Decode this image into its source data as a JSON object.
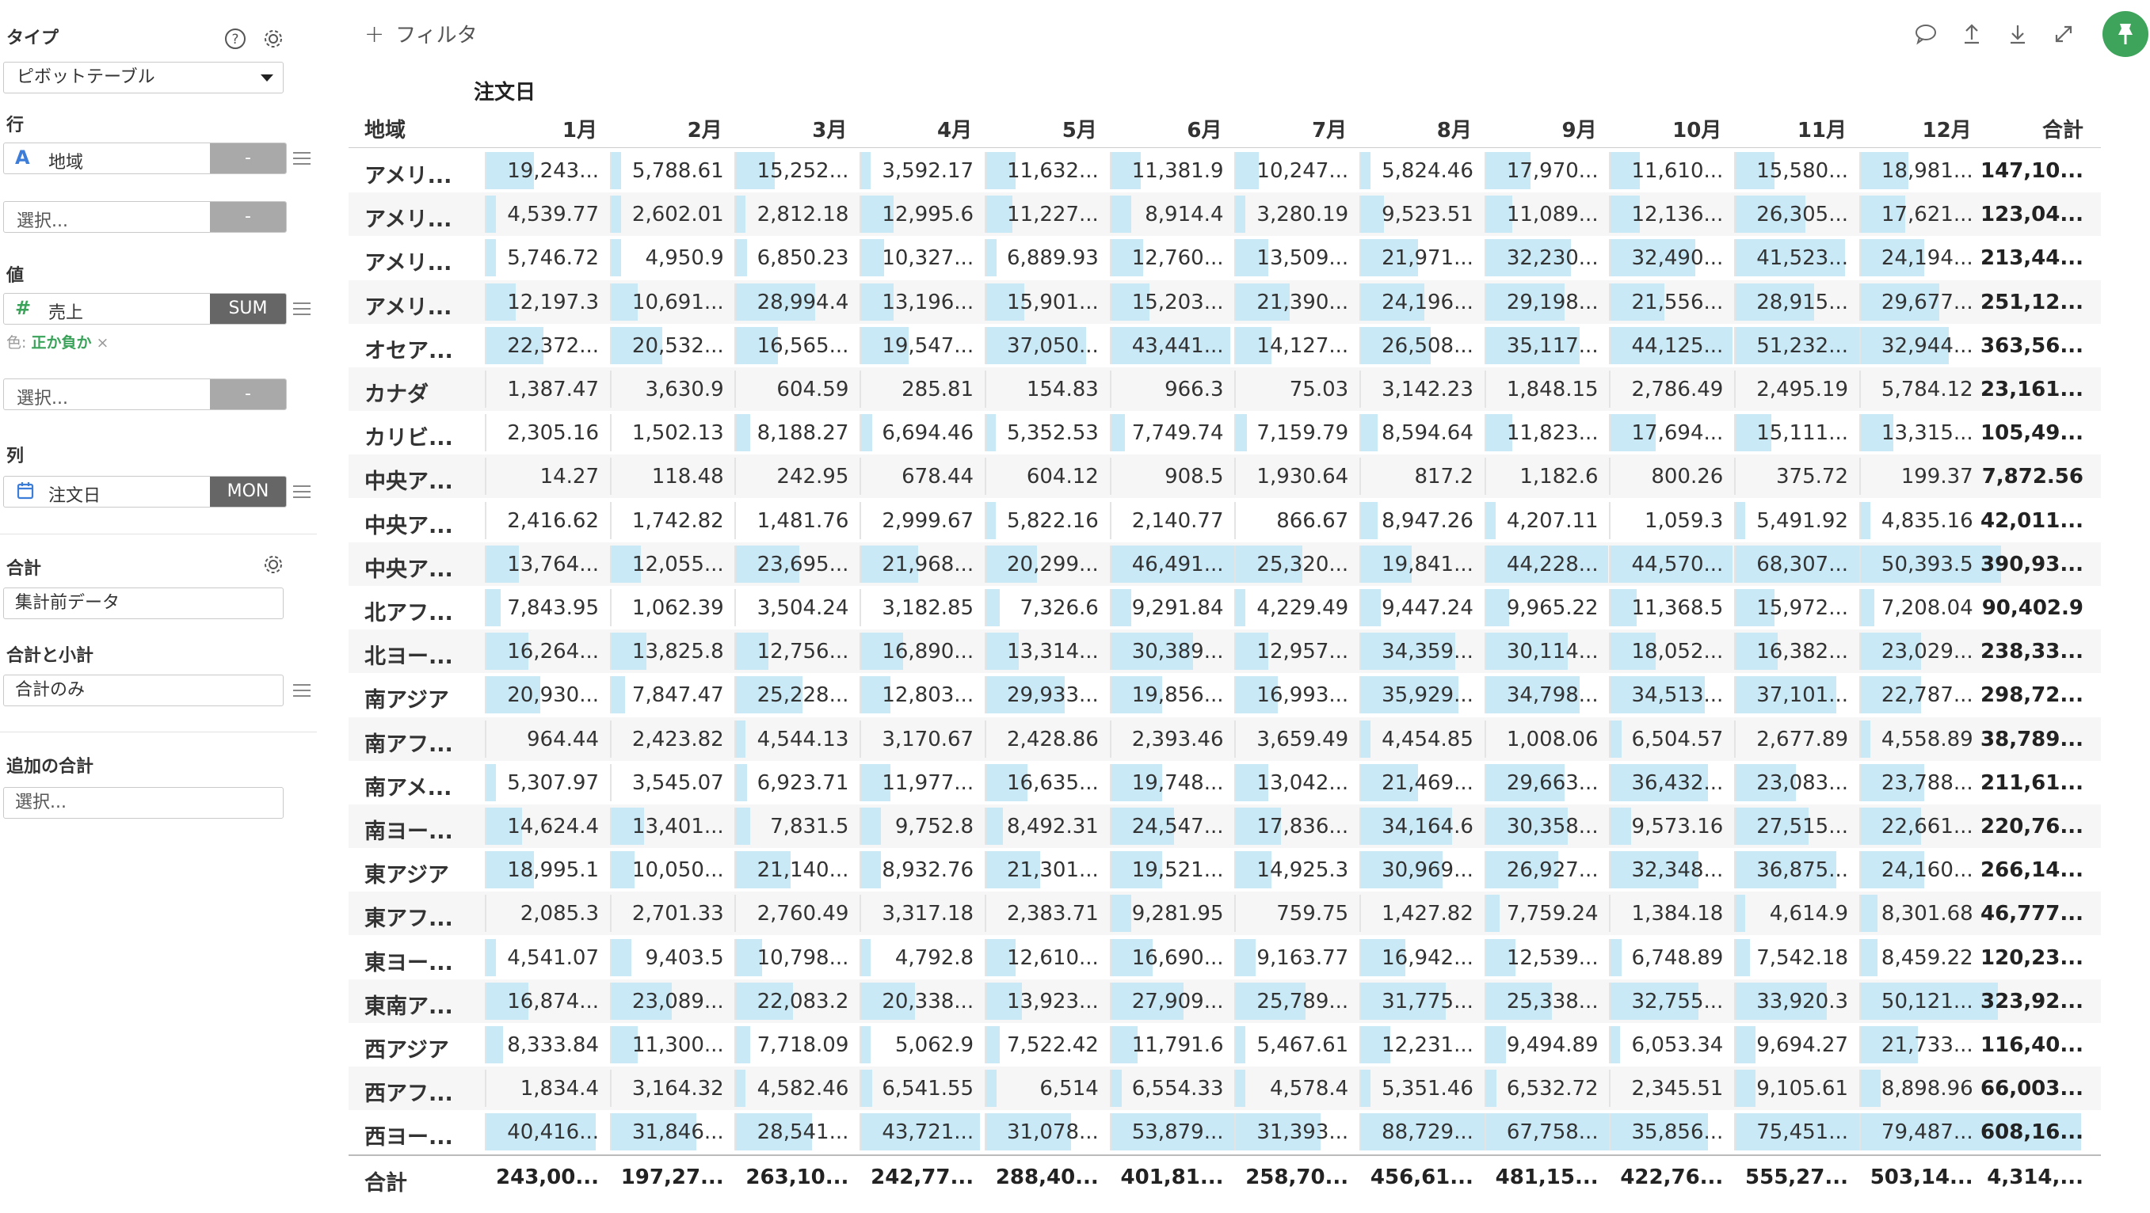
{
  "sidebar": {
    "type_label": "タイプ",
    "chart_type": "ピボットテーブル",
    "rows_label": "行",
    "row_field": {
      "type_icon": "A",
      "name": "地域",
      "agg": "-"
    },
    "row_select": {
      "placeholder": "選択...",
      "agg": "-"
    },
    "values_label": "値",
    "value_field": {
      "type_icon": "#",
      "name": "売上",
      "agg": "SUM"
    },
    "color_prefix": "色:",
    "color_value": "正か負か",
    "color_remove": "×",
    "value_select": {
      "placeholder": "選択...",
      "agg": "-"
    },
    "columns_label": "列",
    "col_field": {
      "name": "注文日",
      "agg": "MON"
    },
    "total_label": "合計",
    "total_value": "集計前データ",
    "subtotal_label": "合計と小計",
    "subtotal_value": "合計のみ",
    "extra_total_label": "追加の合計",
    "extra_total_placeholder": "選択..."
  },
  "toolbar": {
    "filter_plus": "+",
    "filter_label": "フィルタ",
    "icons": [
      "comment-icon",
      "upload-icon",
      "download-icon",
      "expand-icon",
      "pin-icon"
    ]
  },
  "table": {
    "column_group": "注文日",
    "row_header": "地域",
    "months": [
      "1月",
      "2月",
      "3月",
      "4月",
      "5月",
      "6月",
      "7月",
      "8月",
      "9月",
      "10月",
      "11月",
      "12月"
    ],
    "total_header": "合計",
    "rows": [
      {
        "name": "アメリ...",
        "cells": [
          "19,243...",
          "5,788.61",
          "15,252...",
          "3,592.17",
          "11,632...",
          "11,381.9",
          "10,247...",
          "5,824.46",
          "17,970...",
          "11,610...",
          "15,580...",
          "18,981..."
        ],
        "total": "147,10...",
        "bars": [
          0.16,
          0.03,
          0.13,
          0.01,
          0.1,
          0.1,
          0.08,
          0.03,
          0.15,
          0.1,
          0.13,
          0.16
        ]
      },
      {
        "name": "アメリ...",
        "cells": [
          "4,539.77",
          "2,602.01",
          "2,812.18",
          "12,995.6",
          "11,227...",
          "8,914.4",
          "3,280.19",
          "9,523.51",
          "11,089...",
          "12,136...",
          "26,305...",
          "17,621..."
        ],
        "total": "123,04...",
        "bars": [
          0.02,
          0.01,
          0.01,
          0.11,
          0.09,
          0.07,
          0.01,
          0.08,
          0.09,
          0.1,
          0.23,
          0.15
        ]
      },
      {
        "name": "アメリ...",
        "cells": [
          "5,746.72",
          "4,950.9",
          "6,850.23",
          "10,327...",
          "6,889.93",
          "12,760...",
          "13,509...",
          "21,971...",
          "32,230...",
          "32,490...",
          "41,523...",
          "24,194..."
        ],
        "total": "213,44...",
        "bars": [
          0.03,
          0.02,
          0.04,
          0.08,
          0.04,
          0.11,
          0.11,
          0.19,
          0.28,
          0.28,
          0.36,
          0.21
        ]
      },
      {
        "name": "アメリ...",
        "cells": [
          "12,197.3",
          "10,691...",
          "28,994.4",
          "13,196...",
          "15,901...",
          "15,203...",
          "21,390...",
          "24,196...",
          "29,198...",
          "21,556...",
          "28,915...",
          "29,677..."
        ],
        "total": "251,12...",
        "bars": [
          0.1,
          0.09,
          0.26,
          0.11,
          0.13,
          0.13,
          0.18,
          0.21,
          0.26,
          0.18,
          0.26,
          0.26
        ]
      },
      {
        "name": "オセア...",
        "cells": [
          "22,372...",
          "20,532...",
          "16,565...",
          "19,547...",
          "37,050...",
          "43,441...",
          "14,127...",
          "26,508...",
          "35,117...",
          "44,125...",
          "51,232...",
          "32,944..."
        ],
        "total": "363,56...",
        "bars": [
          0.19,
          0.17,
          0.14,
          0.16,
          0.33,
          0.39,
          0.12,
          0.23,
          0.31,
          0.4,
          0.46,
          0.29
        ]
      },
      {
        "name": "カナダ",
        "cells": [
          "1,387.47",
          "3,630.9",
          "604.59",
          "285.81",
          "154.83",
          "966.3",
          "75.03",
          "3,142.23",
          "1,848.15",
          "2,786.49",
          "2,495.19",
          "5,784.12"
        ],
        "total": "23,161...",
        "bars": [
          0,
          0,
          0,
          0,
          0,
          0,
          0,
          0,
          0,
          0,
          0,
          0
        ]
      },
      {
        "name": "カリビ...",
        "cells": [
          "2,305.16",
          "1,502.13",
          "8,188.27",
          "6,694.46",
          "5,352.53",
          "7,749.74",
          "7,159.79",
          "8,594.64",
          "11,823...",
          "17,694...",
          "15,111...",
          "13,315..."
        ],
        "total": "105,49...",
        "bars": [
          0,
          0,
          0.05,
          0.04,
          0.03,
          0.05,
          0.04,
          0.06,
          0.09,
          0.15,
          0.12,
          0.11
        ]
      },
      {
        "name": "中央ア...",
        "cells": [
          "14.27",
          "118.48",
          "242.95",
          "678.44",
          "604.12",
          "908.5",
          "1,930.64",
          "817.2",
          "1,182.6",
          "800.26",
          "375.72",
          "199.37"
        ],
        "total": "7,872.56",
        "bars": [
          0,
          0,
          0,
          0,
          0,
          0,
          0,
          0,
          0,
          0,
          0,
          0
        ]
      },
      {
        "name": "中央ア...",
        "cells": [
          "2,416.62",
          "1,742.82",
          "1,481.76",
          "2,999.67",
          "5,822.16",
          "2,140.77",
          "866.67",
          "8,947.26",
          "4,207.11",
          "1,059.3",
          "5,491.92",
          "4,835.16"
        ],
        "total": "42,011...",
        "bars": [
          0,
          0,
          0,
          0,
          0.03,
          0,
          0,
          0.06,
          0.01,
          0,
          0.03,
          0.02
        ]
      },
      {
        "name": "中央ア...",
        "cells": [
          "13,764...",
          "12,055...",
          "23,695...",
          "21,968...",
          "20,299...",
          "46,491...",
          "25,320...",
          "19,841...",
          "44,228...",
          "44,570...",
          "68,307...",
          "50,393.5"
        ],
        "total": "390,93...",
        "bars": [
          0.11,
          0.1,
          0.21,
          0.19,
          0.17,
          0.42,
          0.22,
          0.17,
          0.4,
          0.4,
          0.62,
          0.46
        ]
      },
      {
        "name": "北アフ...",
        "cells": [
          "7,843.95",
          "1,062.39",
          "3,504.24",
          "3,182.85",
          "7,326.6",
          "9,291.84",
          "4,229.49",
          "9,447.24",
          "9,965.22",
          "11,368.5",
          "15,972...",
          "7,208.04"
        ],
        "total": "90,402.9",
        "bars": [
          0.05,
          0,
          0,
          0,
          0.05,
          0.07,
          0.01,
          0.07,
          0.08,
          0.09,
          0.13,
          0.05
        ]
      },
      {
        "name": "北ヨー...",
        "cells": [
          "16,264...",
          "13,825.8",
          "12,756...",
          "16,890...",
          "13,314...",
          "30,389...",
          "12,957...",
          "34,359...",
          "30,114...",
          "18,052...",
          "16,382...",
          "23,029..."
        ],
        "total": "238,33...",
        "bars": [
          0.14,
          0.12,
          0.11,
          0.14,
          0.11,
          0.27,
          0.11,
          0.31,
          0.27,
          0.15,
          0.14,
          0.2
        ]
      },
      {
        "name": "南アジア",
        "cells": [
          "20,930...",
          "7,847.47",
          "25,228...",
          "12,803...",
          "29,933...",
          "19,856...",
          "16,993...",
          "35,929...",
          "34,798...",
          "34,513...",
          "37,101...",
          "22,787..."
        ],
        "total": "298,72...",
        "bars": [
          0.18,
          0.05,
          0.22,
          0.1,
          0.26,
          0.17,
          0.14,
          0.32,
          0.31,
          0.31,
          0.33,
          0.2
        ]
      },
      {
        "name": "南アフ...",
        "cells": [
          "964.44",
          "2,423.82",
          "4,544.13",
          "3,170.67",
          "2,428.86",
          "2,393.46",
          "3,659.49",
          "4,454.85",
          "1,008.06",
          "6,504.57",
          "2,677.89",
          "4,558.89"
        ],
        "total": "38,789...",
        "bars": [
          0,
          0,
          0.01,
          0,
          0,
          0,
          0,
          0.01,
          0,
          0.04,
          0,
          0.01
        ]
      },
      {
        "name": "南アメ...",
        "cells": [
          "5,307.97",
          "3,545.07",
          "6,923.71",
          "11,977...",
          "16,635...",
          "19,748...",
          "13,042...",
          "21,469...",
          "29,663...",
          "36,432...",
          "23,083...",
          "23,788..."
        ],
        "total": "211,61...",
        "bars": [
          0.03,
          0,
          0.04,
          0.1,
          0.14,
          0.17,
          0.11,
          0.19,
          0.26,
          0.32,
          0.2,
          0.21
        ]
      },
      {
        "name": "南ヨー...",
        "cells": [
          "14,624.4",
          "13,401...",
          "7,831.5",
          "9,752.8",
          "8,492.31",
          "24,547...",
          "17,836...",
          "34,164.6",
          "30,358...",
          "9,573.16",
          "27,515...",
          "22,661..."
        ],
        "total": "220,76...",
        "bars": [
          0.12,
          0.11,
          0.05,
          0.07,
          0.06,
          0.21,
          0.15,
          0.3,
          0.27,
          0.07,
          0.24,
          0.2
        ]
      },
      {
        "name": "東アジア",
        "cells": [
          "18,995.1",
          "10,050...",
          "21,140...",
          "8,932.76",
          "21,301...",
          "19,521...",
          "14,925.3",
          "30,969...",
          "26,927...",
          "32,348...",
          "36,875...",
          "24,160..."
        ],
        "total": "266,14...",
        "bars": [
          0.16,
          0.08,
          0.18,
          0.07,
          0.18,
          0.17,
          0.12,
          0.27,
          0.24,
          0.29,
          0.33,
          0.21
        ]
      },
      {
        "name": "東アフ...",
        "cells": [
          "2,085.3",
          "2,701.33",
          "2,760.49",
          "3,317.18",
          "2,383.71",
          "9,281.95",
          "759.75",
          "1,427.82",
          "7,759.24",
          "1,384.18",
          "4,614.9",
          "8,301.68"
        ],
        "total": "46,777...",
        "bars": [
          0,
          0,
          0,
          0,
          0,
          0.07,
          0,
          0,
          0.05,
          0,
          0.01,
          0.06
        ]
      },
      {
        "name": "東ヨー...",
        "cells": [
          "4,541.07",
          "9,403.5",
          "10,798...",
          "4,792.8",
          "12,610...",
          "16,690...",
          "9,163.77",
          "16,942...",
          "12,539...",
          "6,748.89",
          "7,542.18",
          "8,459.22"
        ],
        "total": "120,23...",
        "bars": [
          0.01,
          0.07,
          0.09,
          0.01,
          0.1,
          0.14,
          0.07,
          0.15,
          0.1,
          0.04,
          0.05,
          0.06
        ]
      },
      {
        "name": "東南ア...",
        "cells": [
          "16,874...",
          "23,089...",
          "22,083.2",
          "20,338...",
          "13,923...",
          "27,909...",
          "25,789...",
          "31,775...",
          "25,338...",
          "32,755...",
          "33,920.3",
          "50,121..."
        ],
        "total": "323,92...",
        "bars": [
          0.14,
          0.2,
          0.19,
          0.18,
          0.12,
          0.24,
          0.23,
          0.28,
          0.22,
          0.29,
          0.3,
          0.45
        ]
      },
      {
        "name": "西アジア",
        "cells": [
          "8,333.84",
          "11,300...",
          "7,718.09",
          "5,062.9",
          "7,522.42",
          "11,791.6",
          "5,467.61",
          "12,231...",
          "9,494.89",
          "6,053.34",
          "9,694.27",
          "21,733..."
        ],
        "total": "116,40...",
        "bars": [
          0.06,
          0.09,
          0.05,
          0.02,
          0.05,
          0.09,
          0.03,
          0.1,
          0.07,
          0.03,
          0.07,
          0.19
        ]
      },
      {
        "name": "西アフ...",
        "cells": [
          "1,834.4",
          "3,164.32",
          "4,582.46",
          "6,541.55",
          "6,514",
          "6,554.33",
          "4,578.4",
          "5,351.46",
          "6,532.72",
          "2,345.51",
          "9,105.61",
          "8,898.96"
        ],
        "total": "66,003...",
        "bars": [
          0,
          0,
          0.01,
          0.04,
          0.04,
          0.04,
          0.01,
          0.03,
          0.04,
          0,
          0.07,
          0.07
        ]
      },
      {
        "name": "西ヨー...",
        "cells": [
          "40,416...",
          "31,846...",
          "28,541...",
          "43,721...",
          "31,078...",
          "53,879...",
          "31,393...",
          "88,729...",
          "67,758...",
          "35,856...",
          "75,451...",
          "79,487..."
        ],
        "total": "608,16...",
        "bars": [
          0.36,
          0.28,
          0.25,
          0.39,
          0.28,
          0.48,
          0.28,
          0.8,
          0.61,
          0.32,
          0.68,
          0.72
        ]
      }
    ],
    "footer": {
      "label": "合計",
      "cells": [
        "243,00...",
        "197,27...",
        "263,10...",
        "242,77...",
        "288,40...",
        "401,81...",
        "258,70...",
        "456,61...",
        "481,15...",
        "422,76...",
        "555,27...",
        "503,14..."
      ],
      "total": "4,314,..."
    }
  }
}
